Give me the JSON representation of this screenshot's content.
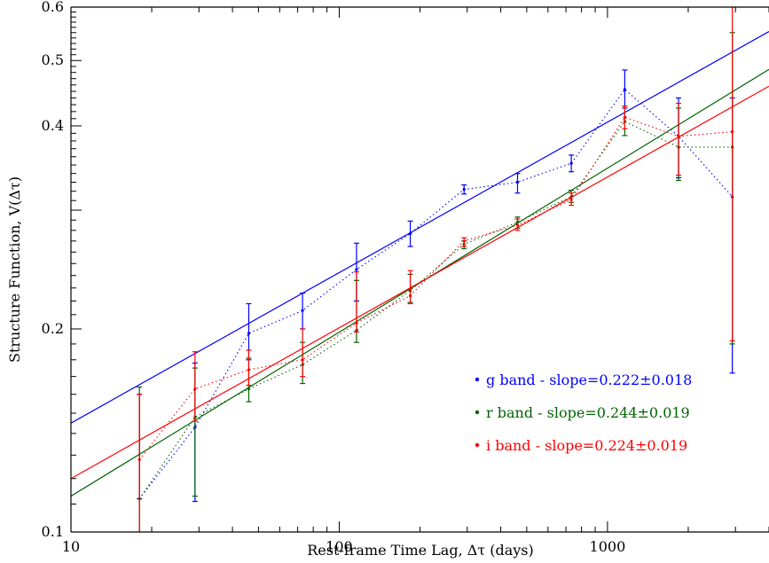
{
  "chart_data": {
    "type": "line",
    "title": "",
    "xlabel": "Rest-frame Time Lag, Δτ (days)",
    "ylabel": "Structure Function, V(Δτ)",
    "xscale": "log",
    "yscale": "log",
    "xlim": [
      10,
      4000
    ],
    "ylim": [
      0.1,
      0.6
    ],
    "grid": false,
    "legend_position": "lower-right",
    "x_ticks": [
      {
        "value": 10,
        "label": "10"
      },
      {
        "value": 100,
        "label": "100"
      },
      {
        "value": 1000,
        "label": "1000"
      }
    ],
    "y_ticks": [
      {
        "value": 0.1,
        "label": "0.1"
      },
      {
        "value": 0.2,
        "label": "0.2"
      },
      {
        "value": 0.4,
        "label": "0.4"
      },
      {
        "value": 0.5,
        "label": "0.5"
      },
      {
        "value": 0.6,
        "label": "0.6"
      }
    ],
    "series": [
      {
        "name": "g band - slope=0.222±0.018",
        "color": "#0000ff",
        "slope": 0.222,
        "slope_err": 0.018,
        "fit": [
          [
            10,
            0.145
          ],
          [
            4000,
            0.552
          ]
        ],
        "x": [
          18,
          29,
          46,
          73,
          116,
          184,
          292,
          462,
          733,
          1160,
          1840,
          2920
        ],
        "y": [
          0.112,
          0.143,
          0.197,
          0.213,
          0.245,
          0.277,
          0.322,
          0.33,
          0.352,
          0.453,
          0.386,
          0.314
        ],
        "err_low": [
          0.112,
          0.111,
          0.18,
          0.2,
          0.22,
          0.265,
          0.317,
          0.318,
          0.342,
          0.425,
          0.335,
          0.172
        ],
        "err_high": [
          0.16,
          0.178,
          0.218,
          0.226,
          0.268,
          0.289,
          0.327,
          0.34,
          0.362,
          0.484,
          0.44,
          0.44
        ]
      },
      {
        "name": "r band - slope=0.244±0.019",
        "color": "#006400",
        "slope": 0.244,
        "slope_err": 0.019,
        "fit": [
          [
            10,
            0.113
          ],
          [
            4000,
            0.485
          ]
        ],
        "x": [
          18,
          29,
          46,
          73,
          116,
          184,
          292,
          462,
          733,
          1160,
          1840,
          2920
        ],
        "y": [
          0.112,
          0.148,
          0.163,
          0.177,
          0.199,
          0.228,
          0.267,
          0.288,
          0.314,
          0.406,
          0.372,
          0.372
        ],
        "err_low": [
          0.1,
          0.113,
          0.156,
          0.166,
          0.191,
          0.219,
          0.263,
          0.282,
          0.308,
          0.387,
          0.332,
          0.19
        ],
        "err_high": [
          0.164,
          0.175,
          0.181,
          0.191,
          0.236,
          0.241,
          0.27,
          0.293,
          0.321,
          0.428,
          0.425,
          0.55
        ]
      },
      {
        "name": "i band - slope=0.224±0.019",
        "color": "#ff0000",
        "slope": 0.224,
        "slope_err": 0.019,
        "fit": [
          [
            10,
            0.12
          ],
          [
            4000,
            0.458
          ]
        ],
        "x": [
          18,
          29,
          46,
          73,
          116,
          184,
          292,
          462,
          733,
          1160,
          1840,
          2920
        ],
        "y": [
          0.128,
          0.163,
          0.174,
          0.18,
          0.204,
          0.224,
          0.27,
          0.285,
          0.311,
          0.412,
          0.386,
          0.392
        ],
        "err_low": [
          0.1,
          0.146,
          0.165,
          0.17,
          0.198,
          0.218,
          0.265,
          0.28,
          0.305,
          0.396,
          0.338,
          0.192
        ],
        "err_high": [
          0.16,
          0.185,
          0.186,
          0.2,
          0.243,
          0.244,
          0.273,
          0.291,
          0.318,
          0.428,
          0.432,
          0.6
        ]
      }
    ]
  }
}
